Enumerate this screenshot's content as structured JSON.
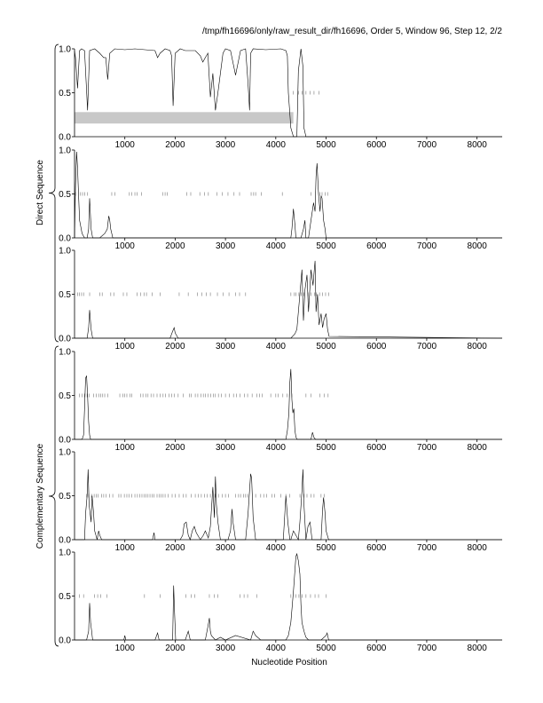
{
  "header": {
    "title": "/tmp/fh16696/only/raw_result_dir/fh16696, Order 5, Window 96, Step 12, 2/2"
  },
  "labels": {
    "xlabel": "Nucleotide Position",
    "direct_group": "Direct Sequence",
    "complementary_group": "Complementary Sequence"
  },
  "chart_data": {
    "type": "line",
    "xlim": [
      0,
      8500
    ],
    "ylim": [
      0,
      1
    ],
    "x_ticks": [
      1000,
      2000,
      3000,
      4000,
      5000,
      6000,
      7000,
      8000
    ],
    "x_tick_labels": [
      "1000",
      "2000",
      "3000",
      "4000",
      "5000",
      "6000",
      "7000",
      "8000"
    ],
    "y_ticks": [
      0,
      0.5,
      1
    ],
    "y_tick_labels": [
      "0.0",
      "0.5",
      "1.0"
    ],
    "panels": [
      {
        "group": "summary",
        "trace_x": [
          0,
          20,
          60,
          100,
          140,
          200,
          260,
          300,
          400,
          500,
          580,
          620,
          660,
          700,
          800,
          1000,
          1200,
          1600,
          1650,
          1700,
          1800,
          1900,
          1930,
          1960,
          2000,
          2100,
          2200,
          2400,
          2500,
          2550,
          2600,
          2650,
          2700,
          2750,
          2800,
          2850,
          2900,
          2950,
          3000,
          3100,
          3200,
          3300,
          3400,
          3450,
          3480,
          3500,
          3550,
          3800,
          4100,
          4200,
          4230,
          4250,
          4300,
          4350,
          4380,
          4400,
          4420,
          4450,
          4500,
          4540,
          4560,
          4600,
          4700,
          8500
        ],
        "trace_y": [
          0.98,
          0.9,
          0.55,
          0.98,
          1.0,
          0.98,
          0.3,
          0.98,
          1.0,
          0.95,
          0.9,
          0.9,
          0.65,
          0.95,
          1.0,
          0.99,
          1.0,
          0.98,
          0.9,
          0.95,
          1.0,
          0.98,
          0.92,
          0.35,
          0.95,
          1.0,
          0.98,
          0.98,
          0.92,
          0.85,
          0.9,
          0.95,
          0.45,
          0.72,
          0.3,
          0.5,
          0.72,
          0.95,
          1.0,
          0.98,
          0.7,
          0.98,
          1.0,
          0.6,
          0.3,
          0.95,
          1.0,
          0.99,
          1.0,
          0.98,
          0.92,
          0.5,
          0.1,
          0.0,
          0.0,
          0.0,
          0.0,
          0.75,
          1.0,
          0.8,
          0.1,
          0.0,
          0.0,
          0.0
        ],
        "bar_range": [
          0,
          4350
        ],
        "bar_band": [
          0.15,
          0.28
        ],
        "marks_y": 0.5,
        "marks_x": [
          4350,
          4450,
          4520,
          4600,
          4680,
          4760,
          4860
        ]
      },
      {
        "group": "direct",
        "trace_x": [
          0,
          20,
          40,
          60,
          80,
          100,
          150,
          200,
          250,
          280,
          300,
          330,
          360,
          400,
          500,
          600,
          650,
          680,
          700,
          720,
          760,
          800,
          4300,
          4320,
          4350,
          4380,
          4400,
          4500,
          4550,
          4580,
          4600,
          4650,
          4700,
          4750,
          4780,
          4800,
          4820,
          4850,
          4880,
          4900,
          4920,
          4950,
          4980,
          5000,
          5050,
          8500
        ],
        "trace_y": [
          0.0,
          0.6,
          0.98,
          0.8,
          0.5,
          0.2,
          0.05,
          0.0,
          0.0,
          0.1,
          0.45,
          0.1,
          0.0,
          0.0,
          0.0,
          0.05,
          0.1,
          0.25,
          0.2,
          0.1,
          0.0,
          0.0,
          0.0,
          0.1,
          0.33,
          0.15,
          0.0,
          0.0,
          0.1,
          0.2,
          0.0,
          0.0,
          0.2,
          0.4,
          0.3,
          0.7,
          0.85,
          0.5,
          0.3,
          0.48,
          0.45,
          0.2,
          0.1,
          0.0,
          0.0,
          0.0
        ],
        "marks_y": 0.5,
        "marks_x": [
          20,
          120,
          160,
          200,
          260,
          740,
          800,
          1090,
          1140,
          1200,
          1240,
          1330,
          1750,
          1800,
          1840,
          2230,
          2310,
          2490,
          2580,
          2660,
          2830,
          2940,
          3050,
          3170,
          3280,
          3510,
          3560,
          3600,
          3710,
          4130,
          4700,
          4880,
          4920,
          4980,
          5030
        ]
      },
      {
        "group": "direct",
        "trace_x": [
          0,
          200,
          250,
          280,
          300,
          330,
          360,
          400,
          1900,
          1950,
          1980,
          2000,
          2030,
          2060,
          4300,
          4380,
          4420,
          4480,
          4520,
          4550,
          4580,
          4620,
          4650,
          4700,
          4740,
          4780,
          4800,
          4830,
          4860,
          4900,
          4930,
          4960,
          5000,
          5030,
          5060,
          8500
        ],
        "trace_y": [
          0.0,
          0.0,
          0.0,
          0.12,
          0.32,
          0.1,
          0.0,
          0.0,
          0.0,
          0.08,
          0.12,
          0.06,
          0.03,
          0.0,
          0.0,
          0.05,
          0.1,
          0.5,
          0.78,
          0.2,
          0.55,
          0.72,
          0.3,
          0.78,
          0.6,
          0.88,
          0.3,
          0.5,
          0.15,
          0.28,
          0.12,
          0.22,
          0.28,
          0.1,
          0.02,
          0.0
        ],
        "marks_y": 0.5,
        "marks_x": [
          60,
          100,
          140,
          180,
          300,
          500,
          550,
          720,
          780,
          970,
          1040,
          1240,
          1310,
          1380,
          1430,
          1540,
          1700,
          2080,
          2260,
          2440,
          2530,
          2620,
          2700,
          2840,
          2950,
          3070,
          3200,
          3280,
          3400,
          4300,
          4370,
          4400,
          4460,
          4510,
          4560,
          4640,
          4700,
          4770,
          4810,
          4870,
          4930,
          4990,
          5050
        ]
      },
      {
        "group": "complementary",
        "trace_x": [
          0,
          150,
          180,
          200,
          220,
          240,
          260,
          280,
          300,
          320,
          350,
          400,
          4200,
          4230,
          4260,
          4280,
          4300,
          4320,
          4340,
          4360,
          4380,
          4400,
          4420,
          4700,
          4730,
          4760,
          4790,
          4820,
          8500
        ],
        "trace_y": [
          0.0,
          0.0,
          0.05,
          0.35,
          0.7,
          0.72,
          0.5,
          0.2,
          0.05,
          0.0,
          0.0,
          0.0,
          0.0,
          0.1,
          0.3,
          0.65,
          0.8,
          0.45,
          0.3,
          0.35,
          0.1,
          0.03,
          0.0,
          0.0,
          0.08,
          0.02,
          0.0,
          0.0,
          0.0
        ],
        "marks_y": 0.5,
        "marks_x": [
          100,
          150,
          200,
          250,
          290,
          380,
          430,
          480,
          520,
          560,
          600,
          660,
          900,
          960,
          1000,
          1040,
          1100,
          1140,
          1310,
          1360,
          1420,
          1460,
          1520,
          1570,
          1640,
          1700,
          1760,
          1810,
          1880,
          1930,
          1980,
          2060,
          2160,
          2280,
          2320,
          2400,
          2450,
          2510,
          2560,
          2600,
          2650,
          2710,
          2760,
          2800,
          2860,
          2920,
          3000,
          3080,
          3160,
          3220,
          3290,
          3380,
          3440,
          3530,
          3620,
          3680,
          3730,
          3900,
          4000,
          4050,
          4140,
          4220,
          4270,
          4320,
          4600,
          4700,
          4880,
          4960,
          5040
        ]
      },
      {
        "group": "complementary",
        "trace_x": [
          0,
          200,
          220,
          250,
          270,
          290,
          310,
          330,
          350,
          380,
          400,
          450,
          480,
          500,
          540,
          600,
          1550,
          1580,
          1600,
          2100,
          2150,
          2180,
          2220,
          2260,
          2300,
          2340,
          2380,
          2420,
          2500,
          2560,
          2600,
          2660,
          2700,
          2750,
          2780,
          2800,
          2820,
          2850,
          2900,
          3050,
          3100,
          3130,
          3150,
          3200,
          3400,
          3450,
          3500,
          3520,
          3550,
          3600,
          4150,
          4200,
          4240,
          4280,
          4300,
          4350,
          4400,
          4450,
          4480,
          4520,
          4540,
          4560,
          4600,
          4640,
          4680,
          4720,
          4900,
          4930,
          4950,
          4980,
          5000,
          5050,
          8500
        ],
        "trace_y": [
          0.0,
          0.0,
          0.3,
          0.5,
          0.8,
          0.4,
          0.3,
          0.2,
          0.5,
          0.3,
          0.1,
          0.0,
          0.1,
          0.05,
          0.0,
          0.0,
          0.0,
          0.08,
          0.0,
          0.0,
          0.05,
          0.18,
          0.2,
          0.05,
          0.0,
          0.1,
          0.15,
          0.08,
          0.0,
          0.05,
          0.1,
          0.02,
          0.15,
          0.6,
          0.25,
          0.72,
          0.4,
          0.2,
          0.0,
          0.0,
          0.1,
          0.35,
          0.2,
          0.0,
          0.0,
          0.3,
          0.75,
          0.7,
          0.25,
          0.0,
          0.0,
          0.5,
          0.2,
          0.0,
          0.0,
          0.1,
          0.05,
          0.0,
          0.2,
          0.55,
          0.8,
          0.4,
          0.0,
          0.15,
          0.2,
          0.0,
          0.0,
          0.35,
          0.48,
          0.3,
          0.1,
          0.0,
          0.0
        ],
        "marks_y": 0.5,
        "marks_x": [
          240,
          280,
          340,
          390,
          430,
          470,
          540,
          580,
          630,
          700,
          760,
          880,
          920,
          990,
          1040,
          1080,
          1140,
          1200,
          1250,
          1300,
          1340,
          1380,
          1420,
          1460,
          1500,
          1540,
          1580,
          1640,
          1680,
          1720,
          1760,
          1800,
          1860,
          1940,
          2000,
          2080,
          2160,
          2220,
          2320,
          2400,
          2460,
          2520,
          2580,
          2640,
          2700,
          2800,
          2860,
          2940,
          3000,
          3060,
          3200,
          3260,
          3300,
          3360,
          3400,
          3440,
          3600,
          3700,
          3760,
          3820,
          3920,
          3980,
          4100,
          4200,
          4280,
          4480,
          4560,
          4620,
          4700,
          4760,
          4900,
          4960
        ]
      },
      {
        "group": "complementary",
        "trace_x": [
          0,
          240,
          280,
          300,
          320,
          340,
          360,
          600,
          980,
          1000,
          1020,
          1600,
          1650,
          1680,
          1950,
          1970,
          1990,
          2010,
          2200,
          2260,
          2300,
          2600,
          2650,
          2680,
          2700,
          2720,
          2800,
          2900,
          3000,
          3200,
          3500,
          3550,
          3600,
          3700,
          4200,
          4250,
          4300,
          4350,
          4400,
          4420,
          4450,
          4480,
          4500,
          4520,
          4560,
          4600,
          4650,
          4700,
          4800,
          4900,
          5000,
          5020,
          5050,
          8500
        ],
        "trace_y": [
          0.0,
          0.0,
          0.1,
          0.42,
          0.2,
          0.1,
          0.0,
          0.0,
          0.0,
          0.05,
          0.0,
          0.0,
          0.08,
          0.0,
          0.0,
          0.62,
          0.3,
          0.0,
          0.0,
          0.1,
          0.0,
          0.0,
          0.15,
          0.25,
          0.1,
          0.05,
          0.0,
          0.03,
          0.0,
          0.05,
          0.0,
          0.1,
          0.05,
          0.0,
          0.0,
          0.05,
          0.2,
          0.55,
          0.95,
          0.98,
          0.9,
          0.75,
          0.4,
          0.2,
          0.1,
          0.03,
          0.0,
          0.0,
          0.0,
          0.0,
          0.05,
          0.08,
          0.0,
          0.0
        ],
        "marks_y": 0.5,
        "marks_x": [
          100,
          180,
          400,
          460,
          520,
          640,
          1390,
          1700,
          2210,
          2320,
          2390,
          2680,
          2780,
          2850,
          3290,
          3370,
          3440,
          3620,
          4300,
          4400,
          4460,
          4520,
          4600,
          4690,
          4780,
          4850,
          5000
        ]
      }
    ]
  }
}
